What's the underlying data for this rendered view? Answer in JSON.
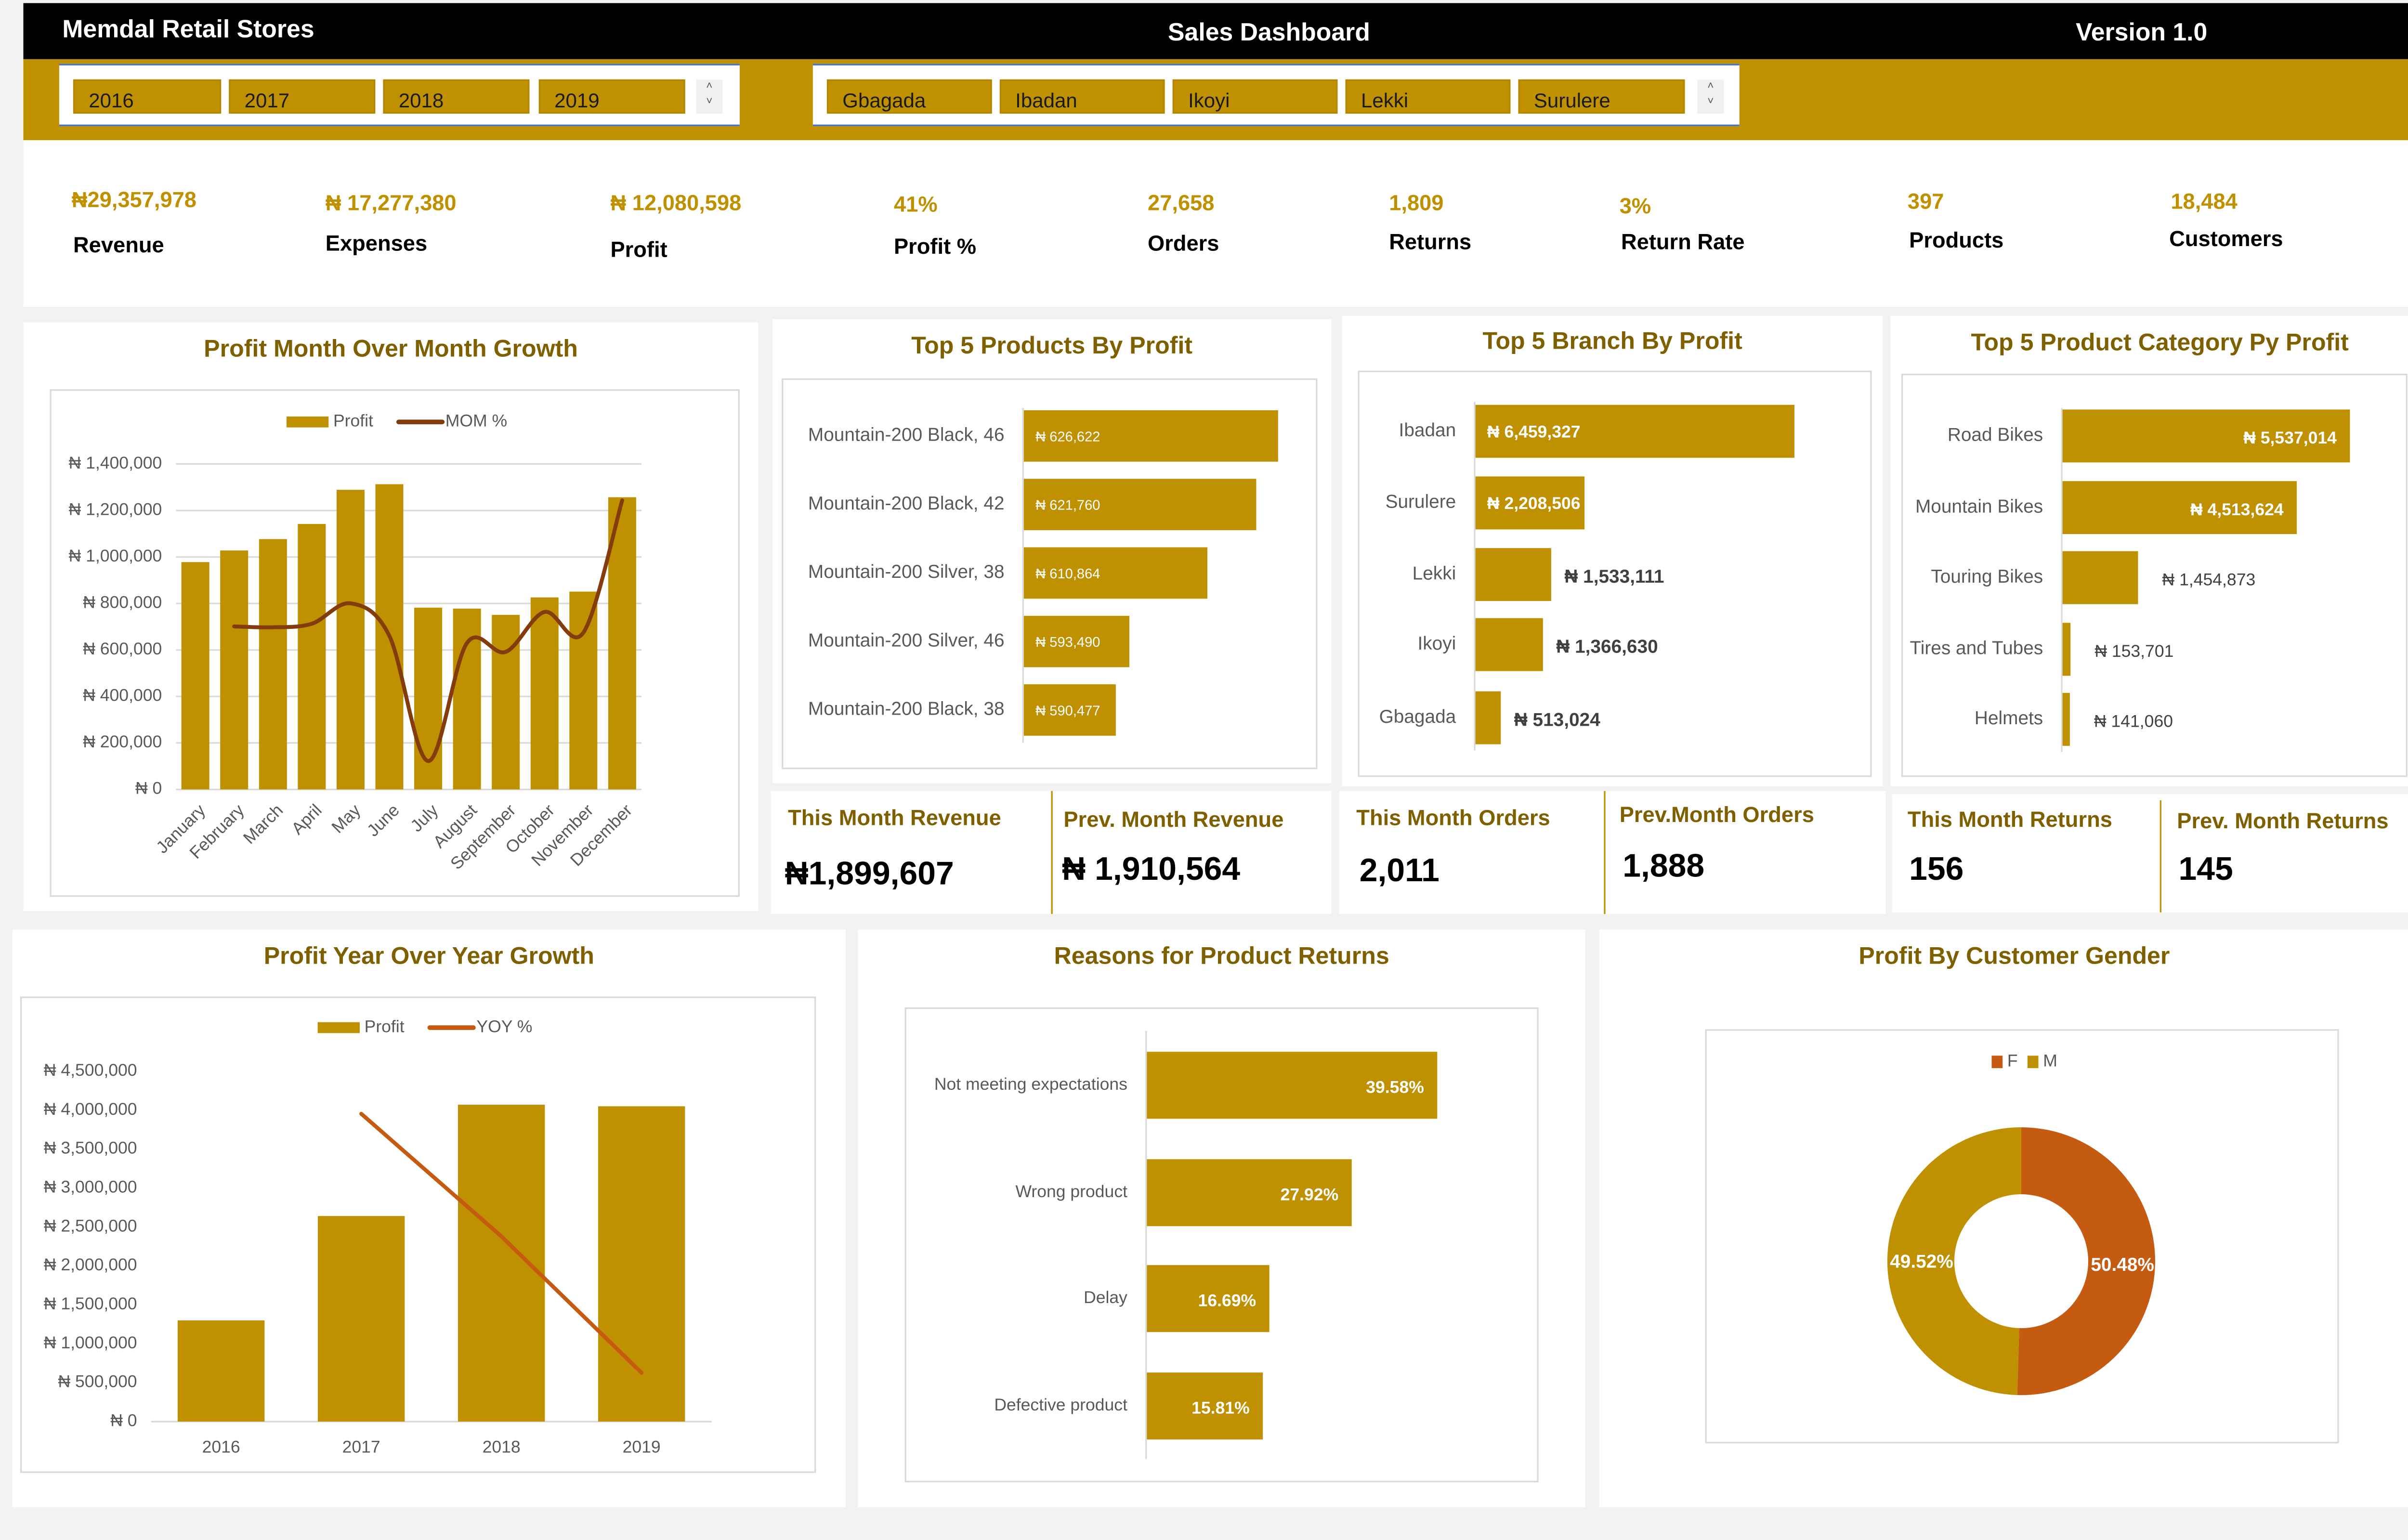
{
  "header": {
    "company": "Memdal Retail Stores",
    "title": "Sales Dashboard",
    "version": "Version 1.0"
  },
  "colors": {
    "accent": "#bf9000",
    "title": "#7f6000",
    "header_bg": "#000000",
    "female": "#c55a11",
    "line_mom": "#843c0c",
    "line_yoy": "#c55a11"
  },
  "slicers": {
    "years": [
      "2016",
      "2017",
      "2018",
      "2019"
    ],
    "branches": [
      "Gbagada",
      "Ibadan",
      "Ikoyi",
      "Lekki",
      "Surulere"
    ],
    "scroll_icons": [
      "chevron-up-icon",
      "chevron-down-icon"
    ]
  },
  "kpis": [
    {
      "value": "₦29,357,978",
      "label": "Revenue"
    },
    {
      "value": "₦ 17,277,380",
      "label": "Expenses"
    },
    {
      "value": "₦ 12,080,598",
      "label": "Profit"
    },
    {
      "value": "41%",
      "label": "Profit %"
    },
    {
      "value": "27,658",
      "label": "Orders"
    },
    {
      "value": "1,809",
      "label": "Returns"
    },
    {
      "value": "3%",
      "label": "Return Rate"
    },
    {
      "value": "397",
      "label": "Products"
    },
    {
      "value": "18,484",
      "label": "Customers"
    }
  ],
  "cards": [
    {
      "label": "This Month Revenue",
      "value": "₦1,899,607"
    },
    {
      "label": "Prev. Month Revenue",
      "value": "₦ 1,910,564"
    },
    {
      "label": "This Month Orders",
      "value": "2,011"
    },
    {
      "label": "Prev.Month Orders",
      "value": "1,888"
    },
    {
      "label": "This Month Returns",
      "value": "156"
    },
    {
      "label": "Prev. Month Returns",
      "value": "145"
    }
  ],
  "chart_data": [
    {
      "type": "bar+line",
      "title": "Profit Month Over Month Growth",
      "categories": [
        "January",
        "February",
        "March",
        "April",
        "May",
        "June",
        "July",
        "August",
        "September",
        "October",
        "November",
        "December"
      ],
      "series": [
        {
          "name": "Profit",
          "type": "bar",
          "values": [
            978000,
            1028000,
            1077000,
            1142000,
            1289000,
            1313000,
            782000,
            778000,
            751000,
            826000,
            851000,
            1257000
          ]
        },
        {
          "name": "MOM %",
          "type": "line",
          "axis": "secondary",
          "smooth": true,
          "values": [
            null,
            5.1,
            4.8,
            6.0,
            12.9,
            1.9,
            -40.4,
            -0.5,
            -3.5,
            10.0,
            3.0,
            47.7
          ]
        }
      ],
      "ylim": [
        0,
        1400000
      ],
      "y2lim": [
        -50,
        60
      ],
      "yticks": [
        0,
        200000,
        400000,
        600000,
        800000,
        1000000,
        1200000,
        1400000
      ],
      "ytick_labels": [
        "₦ 0",
        "₦ 200,000",
        "₦ 400,000",
        "₦ 600,000",
        "₦ 800,000",
        "₦ 1,000,000",
        "₦ 1,200,000",
        "₦ 1,400,000"
      ],
      "grid": true,
      "legend": "top"
    },
    {
      "type": "bar",
      "orientation": "horizontal",
      "title": "Top 5 Products By Profit",
      "categories": [
        "Mountain-200 Black, 46",
        "Mountain-200 Black, 42",
        "Mountain-200 Silver, 38",
        "Mountain-200 Silver, 46",
        "Mountain-200 Black, 38"
      ],
      "values": [
        626622,
        621760,
        610864,
        593490,
        590477
      ],
      "data_labels": [
        "₦ 626,622",
        "₦ 621,760",
        "₦ 610,864",
        "₦ 593,490",
        "₦ 590,477"
      ],
      "data_label_position": [
        "inside-base",
        "inside-base",
        "inside-base",
        "inside-base",
        "inside-base"
      ],
      "xlim": [
        570000,
        630000
      ]
    },
    {
      "type": "bar",
      "orientation": "horizontal",
      "title": "Top 5 Branch By Profit",
      "categories": [
        "Ibadan",
        "Surulere",
        "Lekki",
        "Ikoyi",
        "Gbagada"
      ],
      "values": [
        6459327,
        2208506,
        1533111,
        1366630,
        513024
      ],
      "data_labels": [
        "₦ 6,459,327",
        "₦ 2,208,506",
        "₦ 1,533,111",
        "₦ 1,366,630",
        "₦ 513,024"
      ],
      "data_label_position": [
        "inside-base",
        "inside-base",
        "outside-end",
        "outside-end",
        "outside-end"
      ],
      "xlim": [
        0,
        7000000
      ]
    },
    {
      "type": "bar",
      "orientation": "horizontal",
      "title": "Top 5 Product Category Py Profit",
      "categories": [
        "Road Bikes",
        "Mountain Bikes",
        "Touring Bikes",
        "Tires and Tubes",
        "Helmets"
      ],
      "values": [
        5537014,
        4513624,
        1454873,
        153701,
        141060
      ],
      "data_labels": [
        "₦ 5,537,014",
        "₦ 4,513,624",
        "₦ 1,454,873",
        "₦ 153,701",
        "₦ 141,060"
      ],
      "data_label_position": [
        "inside-end",
        "inside-end",
        "outside-end",
        "outside-end",
        "outside-end"
      ],
      "xlim": [
        0,
        6000000
      ]
    },
    {
      "type": "bar+line",
      "title": "Profit Year Over Year Growth",
      "categories": [
        "2016",
        "2017",
        "2018",
        "2019"
      ],
      "series": [
        {
          "name": "Profit",
          "type": "bar",
          "values": [
            1300000,
            2640000,
            4070000,
            4050000
          ]
        },
        {
          "name": "YOY %",
          "type": "line",
          "axis": "secondary",
          "smooth": false,
          "values": [
            null,
            103,
            54,
            -0.5
          ]
        }
      ],
      "ylim": [
        0,
        4500000
      ],
      "y2lim": [
        -20,
        120
      ],
      "yticks": [
        0,
        500000,
        1000000,
        1500000,
        2000000,
        2500000,
        3000000,
        3500000,
        4000000,
        4500000
      ],
      "ytick_labels": [
        "₦ 0",
        "₦ 500,000",
        "₦ 1,000,000",
        "₦ 1,500,000",
        "₦ 2,000,000",
        "₦ 2,500,000",
        "₦ 3,000,000",
        "₦ 3,500,000",
        "₦ 4,000,000",
        "₦ 4,500,000"
      ],
      "grid": false,
      "legend": "top"
    },
    {
      "type": "bar",
      "orientation": "horizontal",
      "title": "Reasons for Product Returns",
      "categories": [
        "Not meeting expectations",
        "Wrong product",
        "Delay",
        "Defective product"
      ],
      "values": [
        39.58,
        27.92,
        16.69,
        15.81
      ],
      "data_labels": [
        "39.58%",
        "27.92%",
        "16.69%",
        "15.81%"
      ],
      "data_label_position": [
        "inside-end",
        "inside-end",
        "inside-end",
        "inside-end"
      ],
      "xlim": [
        0,
        45
      ]
    },
    {
      "type": "pie",
      "donut": true,
      "title": "Profit By Customer Gender",
      "categories": [
        "F",
        "M"
      ],
      "values": [
        50.48,
        49.52
      ],
      "data_labels": [
        "50.48%",
        "49.52%"
      ],
      "colors": [
        "#c55a11",
        "#bf9000"
      ],
      "legend": "top"
    }
  ]
}
